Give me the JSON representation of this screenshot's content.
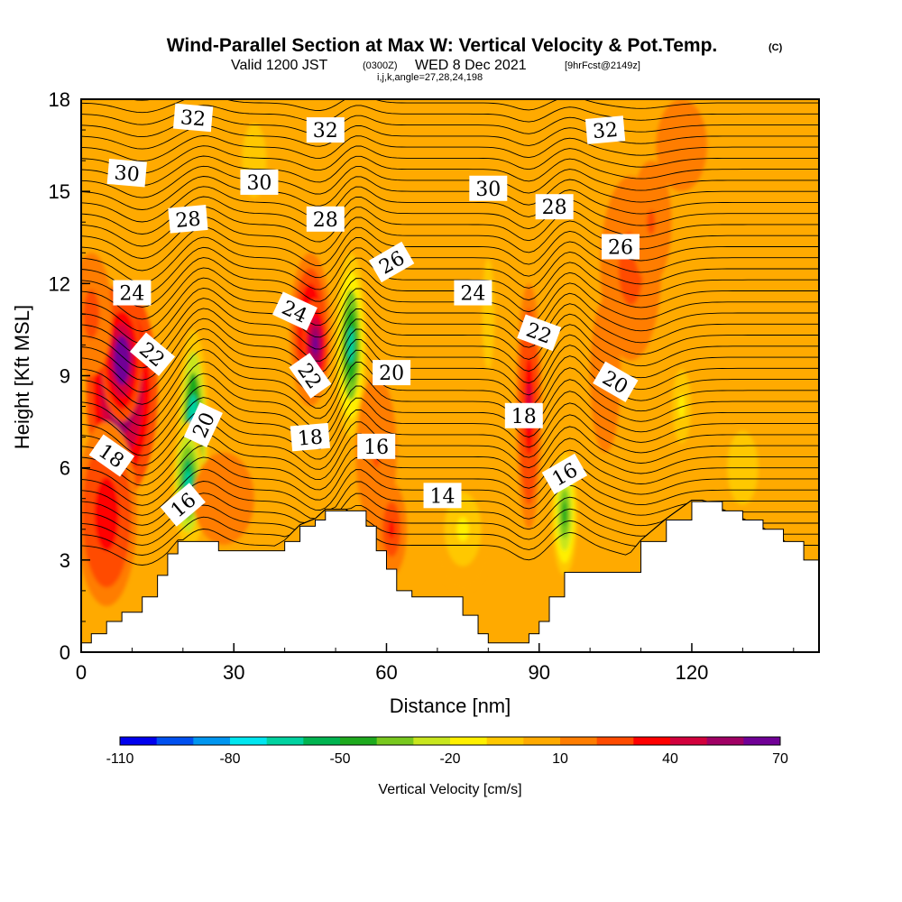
{
  "header": {
    "title": "Wind-Parallel Section at Max W: Vertical Velocity & Pot.Temp.",
    "copyright": "(C)",
    "valid_prefix": "Valid 1200 JST",
    "valid_utc": "(0300Z)",
    "valid_date": "WED 8 Dec 2021",
    "forecast": "[9hrFcst@2149z]",
    "grid_info": "i,j,k,angle=27,28,24,198"
  },
  "chart_data": {
    "type": "heatmap",
    "title": "Wind-Parallel Section at Max W: Vertical Velocity & Pot.Temp.",
    "xlabel": "Distance [nm]",
    "ylabel": "Height [Kft MSL]",
    "xlim": [
      0,
      145
    ],
    "ylim": [
      0,
      18
    ],
    "x_ticks": [
      "0",
      "30",
      "60",
      "90",
      "120"
    ],
    "x_tick_values": [
      0,
      30,
      60,
      90,
      120
    ],
    "y_ticks": [
      "0",
      "3",
      "6",
      "9",
      "12",
      "15",
      "18"
    ],
    "y_tick_values": [
      0,
      3,
      6,
      9,
      12,
      15,
      18
    ],
    "colorbar": {
      "label": "Vertical Velocity [cm/s]",
      "tick_labels": [
        "-110",
        "-80",
        "-50",
        "-20",
        "10",
        "40",
        "70"
      ],
      "tick_values": [
        -110,
        -80,
        -50,
        -20,
        10,
        40,
        70
      ],
      "colors": [
        "#0000ee",
        "#0050f0",
        "#0096f0",
        "#00e6f0",
        "#00d2a0",
        "#00b450",
        "#1eaa1e",
        "#78c81e",
        "#c8e61e",
        "#fff000",
        "#ffc800",
        "#ffaa00",
        "#ff7d00",
        "#ff4b00",
        "#ff0000",
        "#d2003c",
        "#a00064",
        "#700096"
      ]
    },
    "terrain_profile": {
      "x": [
        0,
        2,
        5,
        8,
        12,
        15,
        17,
        19,
        22,
        27,
        30,
        37,
        40,
        43,
        46,
        48,
        52,
        56,
        58,
        60,
        62,
        65,
        67,
        70,
        75,
        78,
        80,
        85,
        86,
        88,
        90,
        92,
        95,
        97,
        100,
        105,
        110,
        115,
        120,
        122,
        126,
        130,
        134,
        138,
        142,
        145
      ],
      "height_kft": [
        0.3,
        0.6,
        1.0,
        1.3,
        1.8,
        2.5,
        3.2,
        3.6,
        3.6,
        3.3,
        3.3,
        3.3,
        3.6,
        4.1,
        4.3,
        4.6,
        4.6,
        4.1,
        3.3,
        2.7,
        2.0,
        1.8,
        1.8,
        1.8,
        1.2,
        0.6,
        0.3,
        0.3,
        0.3,
        0.6,
        1.0,
        1.8,
        2.6,
        2.6,
        2.6,
        2.6,
        3.6,
        4.3,
        4.9,
        4.9,
        4.6,
        4.3,
        4.0,
        3.6,
        3.0,
        2.7
      ]
    },
    "vertical_velocity_cells": [
      {
        "x": 8,
        "y": 8.5,
        "sx": 7,
        "sy": 3.5,
        "w": 60
      },
      {
        "x": 8,
        "y": 9.5,
        "sx": 4,
        "sy": 2,
        "w": 75
      },
      {
        "x": 5,
        "y": 4.5,
        "sx": 6,
        "sy": 3,
        "w": 35
      },
      {
        "x": 2,
        "y": 11,
        "sx": 4,
        "sy": 2,
        "w": 25
      },
      {
        "x": 22,
        "y": 7,
        "sx": 3,
        "sy": 3.5,
        "w": -85
      },
      {
        "x": 21,
        "y": 5.5,
        "sx": 3,
        "sy": 2,
        "w": -70
      },
      {
        "x": 28,
        "y": 5,
        "sx": 6,
        "sy": 1.5,
        "w": 15
      },
      {
        "x": 45,
        "y": 10.5,
        "sx": 4,
        "sy": 2.5,
        "w": 45
      },
      {
        "x": 46,
        "y": 10,
        "sx": 2.5,
        "sy": 1.5,
        "w": 65
      },
      {
        "x": 53,
        "y": 10,
        "sx": 3,
        "sy": 3,
        "w": -65
      },
      {
        "x": 58,
        "y": 6.5,
        "sx": 4,
        "sy": 2.5,
        "w": 20
      },
      {
        "x": 61,
        "y": 4,
        "sx": 3,
        "sy": 1.5,
        "w": 30
      },
      {
        "x": 88,
        "y": 8,
        "sx": 2.5,
        "sy": 4,
        "w": 40
      },
      {
        "x": 95,
        "y": 4.5,
        "sx": 2.5,
        "sy": 2,
        "w": -45
      },
      {
        "x": 108,
        "y": 12.5,
        "sx": 6,
        "sy": 3,
        "w": 25
      },
      {
        "x": 112,
        "y": 14,
        "sx": 4,
        "sy": 2,
        "w": 20
      },
      {
        "x": 103,
        "y": 9,
        "sx": 3,
        "sy": 2.5,
        "w": 15
      },
      {
        "x": 75,
        "y": 4,
        "sx": 6,
        "sy": 2,
        "w": -12
      },
      {
        "x": 118,
        "y": 8,
        "sx": 3,
        "sy": 2,
        "w": -15
      },
      {
        "x": 130,
        "y": 6,
        "sx": 5,
        "sy": 2,
        "w": -8
      },
      {
        "x": 34,
        "y": 16,
        "sx": 4,
        "sy": 2,
        "w": -8
      },
      {
        "x": 80,
        "y": 11,
        "sx": 2,
        "sy": 3,
        "w": -10
      },
      {
        "x": 118,
        "y": 16.5,
        "sx": 5,
        "sy": 1.5,
        "w": 12
      }
    ],
    "potential_temperature_contours": {
      "levels": [
        14,
        16,
        18,
        20,
        22,
        24,
        26,
        28,
        30,
        32
      ],
      "labels": [
        {
          "x": 22,
          "y": 17.4,
          "text": "32",
          "rot": 5
        },
        {
          "x": 48,
          "y": 17.0,
          "text": "32",
          "rot": 0
        },
        {
          "x": 103,
          "y": 17.0,
          "text": "32",
          "rot": -5
        },
        {
          "x": 9,
          "y": 15.6,
          "text": "30",
          "rot": 5
        },
        {
          "x": 35,
          "y": 15.3,
          "text": "30",
          "rot": 0
        },
        {
          "x": 80,
          "y": 15.1,
          "text": "30",
          "rot": 0
        },
        {
          "x": 21,
          "y": 14.1,
          "text": "28",
          "rot": -5
        },
        {
          "x": 48,
          "y": 14.1,
          "text": "28",
          "rot": 0
        },
        {
          "x": 93,
          "y": 14.5,
          "text": "28",
          "rot": 0
        },
        {
          "x": 61,
          "y": 12.7,
          "text": "26",
          "rot": -30
        },
        {
          "x": 106,
          "y": 13.2,
          "text": "26",
          "rot": 0
        },
        {
          "x": 10,
          "y": 11.7,
          "text": "24",
          "rot": 0
        },
        {
          "x": 42,
          "y": 11.1,
          "text": "24",
          "rot": 25
        },
        {
          "x": 77,
          "y": 11.7,
          "text": "24",
          "rot": 0
        },
        {
          "x": 14,
          "y": 9.7,
          "text": "22",
          "rot": 40
        },
        {
          "x": 45,
          "y": 9.0,
          "text": "22",
          "rot": 55
        },
        {
          "x": 90,
          "y": 10.4,
          "text": "22",
          "rot": 20
        },
        {
          "x": 61,
          "y": 9.1,
          "text": "20",
          "rot": 0
        },
        {
          "x": 105,
          "y": 8.8,
          "text": "20",
          "rot": 30
        },
        {
          "x": 24,
          "y": 7.4,
          "text": "20",
          "rot": -65
        },
        {
          "x": 6,
          "y": 6.4,
          "text": "18",
          "rot": 35
        },
        {
          "x": 45,
          "y": 7.0,
          "text": "18",
          "rot": -5
        },
        {
          "x": 87,
          "y": 7.7,
          "text": "18",
          "rot": 0
        },
        {
          "x": 58,
          "y": 6.7,
          "text": "16",
          "rot": 0
        },
        {
          "x": 95,
          "y": 5.8,
          "text": "16",
          "rot": -30
        },
        {
          "x": 20,
          "y": 4.8,
          "text": "16",
          "rot": -40
        },
        {
          "x": 71,
          "y": 5.1,
          "text": "14",
          "rot": 0
        }
      ]
    }
  }
}
